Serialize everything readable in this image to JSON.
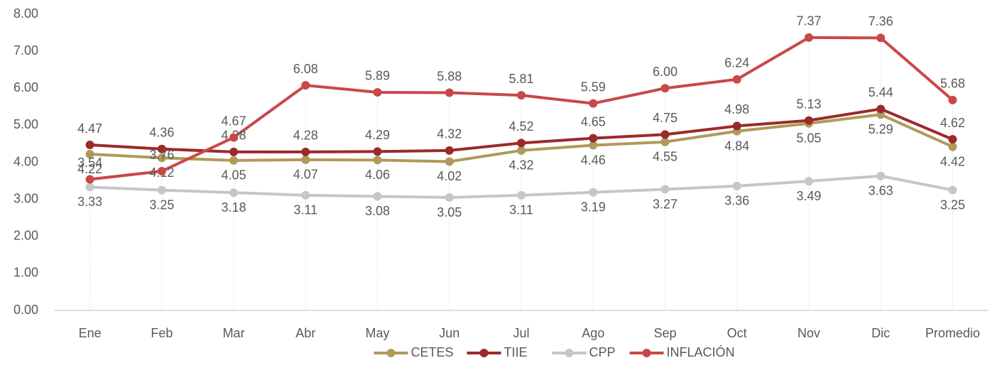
{
  "chart_data": {
    "type": "line",
    "categories": [
      "Ene",
      "Feb",
      "Mar",
      "Abr",
      "May",
      "Jun",
      "Jul",
      "Ago",
      "Sep",
      "Oct",
      "Nov",
      "Dic",
      "Promedio"
    ],
    "series": [
      {
        "name": "CETES",
        "color": "#b09a5a",
        "values": [
          4.22,
          4.12,
          4.05,
          4.07,
          4.06,
          4.02,
          4.32,
          4.46,
          4.55,
          4.84,
          5.05,
          5.29,
          4.42
        ]
      },
      {
        "name": "TIIE",
        "color": "#9b2a2a",
        "values": [
          4.47,
          4.36,
          4.28,
          4.28,
          4.29,
          4.32,
          4.52,
          4.65,
          4.75,
          4.98,
          5.13,
          5.44,
          4.62
        ]
      },
      {
        "name": "CPP",
        "color": "#c6c6c6",
        "values": [
          3.33,
          3.25,
          3.18,
          3.11,
          3.08,
          3.05,
          3.11,
          3.19,
          3.27,
          3.36,
          3.49,
          3.63,
          3.25
        ]
      },
      {
        "name": "INFLACIÓN",
        "color": "#c8484a",
        "values": [
          3.54,
          3.76,
          4.67,
          6.08,
          5.89,
          5.88,
          5.81,
          5.59,
          6.0,
          6.24,
          7.37,
          7.36,
          5.68
        ],
        "value_labels": [
          "3.54",
          "3.76",
          "4.67",
          "6.08",
          "5.89",
          "5.88",
          "5.81",
          "5.59",
          "6.00",
          "6.24",
          "7.37",
          "7.36",
          "5.68"
        ]
      }
    ],
    "ylim": [
      0,
      8
    ],
    "yticks": [
      {
        "value": 0,
        "label": "0.00"
      },
      {
        "value": 1,
        "label": "1.00"
      },
      {
        "value": 2,
        "label": "2.00"
      },
      {
        "value": 3,
        "label": "3.00"
      },
      {
        "value": 4,
        "label": "4.00"
      },
      {
        "value": 5,
        "label": "5.00"
      },
      {
        "value": 6,
        "label": "6.00"
      },
      {
        "value": 7,
        "label": "7.00"
      },
      {
        "value": 8,
        "label": "8.00"
      }
    ],
    "grid": false,
    "legend": "bottom"
  }
}
